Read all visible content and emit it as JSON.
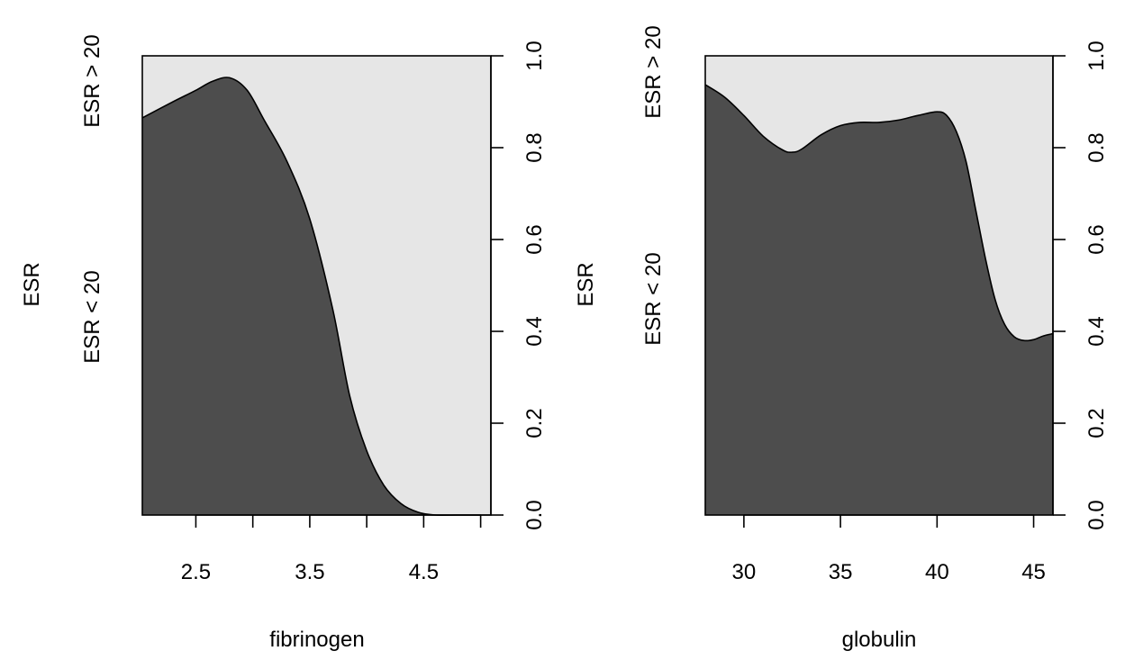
{
  "colors": {
    "lower": "#4d4d4d",
    "upper": "#e6e6e6",
    "axis": "#000000",
    "background": "#ffffff"
  },
  "chart_data": [
    {
      "type": "area",
      "subtype": "conditional-density",
      "xlabel": "fibrinogen",
      "ylabel": "ESR",
      "category_labels": [
        "ESR < 20",
        "ESR > 20"
      ],
      "xlim": [
        2.03,
        5.09
      ],
      "ylim": [
        0,
        1
      ],
      "x_ticks": [
        2.5,
        3.0,
        3.5,
        4.0,
        4.5,
        5.0
      ],
      "x_tick_labels": [
        "2.5",
        "",
        "3.5",
        "",
        "4.5",
        ""
      ],
      "y_ticks": [
        0,
        0.2,
        0.4,
        0.6,
        0.8,
        1.0
      ],
      "y_tick_labels": [
        "0.0",
        "0.2",
        "0.4",
        "0.6",
        "0.8",
        "1.0"
      ],
      "grid": false,
      "series": [
        {
          "name": "ESR < 20",
          "x": [
            2.03,
            2.3,
            2.5,
            2.65,
            2.8,
            2.95,
            3.1,
            3.3,
            3.5,
            3.7,
            3.85,
            4.0,
            4.15,
            4.3,
            4.45,
            4.6,
            4.8,
            5.09
          ],
          "values": [
            0.865,
            0.9,
            0.925,
            0.945,
            0.952,
            0.925,
            0.86,
            0.77,
            0.645,
            0.45,
            0.26,
            0.14,
            0.065,
            0.025,
            0.006,
            0.0,
            0.0,
            0.0
          ]
        }
      ]
    },
    {
      "type": "area",
      "subtype": "conditional-density",
      "xlabel": "globulin",
      "ylabel": "ESR",
      "category_labels": [
        "ESR < 20",
        "ESR > 20"
      ],
      "xlim": [
        28,
        46
      ],
      "ylim": [
        0,
        1
      ],
      "x_ticks": [
        30,
        35,
        40,
        45
      ],
      "x_tick_labels": [
        "30",
        "35",
        "40",
        "45"
      ],
      "y_ticks": [
        0,
        0.2,
        0.4,
        0.6,
        0.8,
        1.0
      ],
      "y_tick_labels": [
        "0.0",
        "0.2",
        "0.4",
        "0.6",
        "0.8",
        "1.0"
      ],
      "grid": false,
      "series": [
        {
          "name": "ESR < 20",
          "x": [
            28,
            29,
            30,
            31,
            32,
            32.5,
            33,
            34,
            35,
            36,
            37,
            38,
            39,
            40,
            40.5,
            41,
            41.5,
            42,
            42.5,
            43,
            43.5,
            44,
            44.5,
            45,
            45.5,
            46
          ],
          "values": [
            0.937,
            0.91,
            0.87,
            0.825,
            0.795,
            0.79,
            0.797,
            0.828,
            0.848,
            0.855,
            0.855,
            0.86,
            0.87,
            0.878,
            0.87,
            0.835,
            0.77,
            0.665,
            0.56,
            0.47,
            0.415,
            0.388,
            0.38,
            0.382,
            0.39,
            0.395
          ]
        }
      ]
    }
  ]
}
